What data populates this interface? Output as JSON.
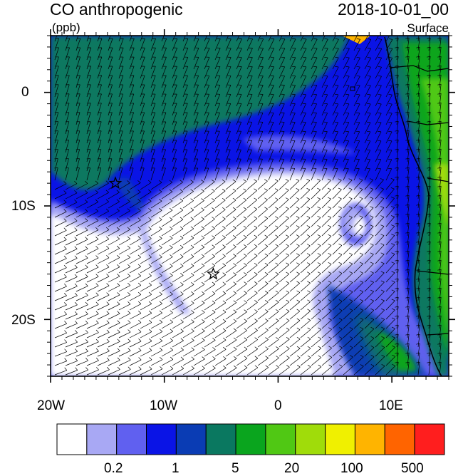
{
  "header": {
    "title": "CO anthropogenic",
    "units": "(ppb)",
    "datetime": "2018-10-01_00",
    "level": "Surface"
  },
  "map": {
    "lon_range": [
      -20,
      15
    ],
    "lat_range": [
      -25,
      5
    ],
    "lon_labels": [
      "20W",
      "10W",
      "0",
      "10E"
    ],
    "lat_labels": [
      "0",
      "10S",
      "20S"
    ],
    "markers": [
      {
        "name": "station-star",
        "lon": -14.3,
        "lat": -8.0
      },
      {
        "name": "station-star",
        "lon": -5.7,
        "lat": -16.0
      }
    ]
  },
  "colorbar": {
    "colors": [
      "#ffffff",
      "#a8a8f4",
      "#6060f0",
      "#0a14e6",
      "#0a3cb4",
      "#0a7860",
      "#0aa51e",
      "#50c814",
      "#a0dc0a",
      "#f0f000",
      "#ffb400",
      "#ff6400",
      "#ff1e1e"
    ],
    "labels": [
      "0.2",
      "1",
      "5",
      "20",
      "100",
      "500"
    ]
  }
}
